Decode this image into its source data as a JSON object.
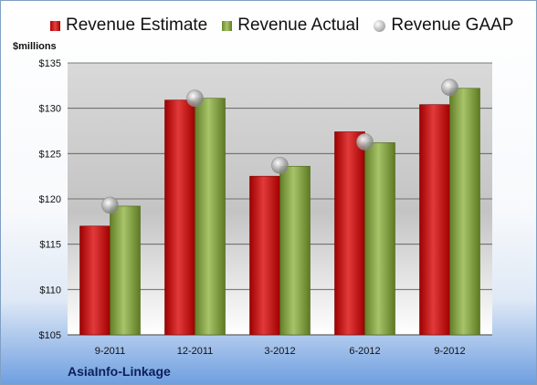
{
  "legend": {
    "estimate": "Revenue Estimate",
    "actual": "Revenue Actual",
    "gaap": "Revenue GAAP"
  },
  "units_label": "$millions",
  "company": "AsiaInfo-Linkage",
  "colors": {
    "estimate": "#d42a2a",
    "actual": "#8fae4e",
    "gaap": "#b5b5b5"
  },
  "chart_data": {
    "type": "bar",
    "categories": [
      "9-2011",
      "12-2011",
      "3-2012",
      "6-2012",
      "9-2012"
    ],
    "series": [
      {
        "name": "Revenue Estimate",
        "values": [
          117.0,
          130.9,
          122.5,
          127.4,
          130.4
        ]
      },
      {
        "name": "Revenue Actual",
        "values": [
          119.2,
          131.1,
          123.6,
          126.2,
          132.2
        ]
      },
      {
        "name": "Revenue GAAP",
        "values": [
          119.3,
          131.1,
          123.7,
          126.3,
          132.3
        ]
      }
    ],
    "ylim": [
      105,
      135
    ],
    "yticks": [
      "$105",
      "$110",
      "$115",
      "$120",
      "$125",
      "$130",
      "$135"
    ],
    "ylabel": "$millions",
    "grid": true,
    "legend_position": "top"
  }
}
